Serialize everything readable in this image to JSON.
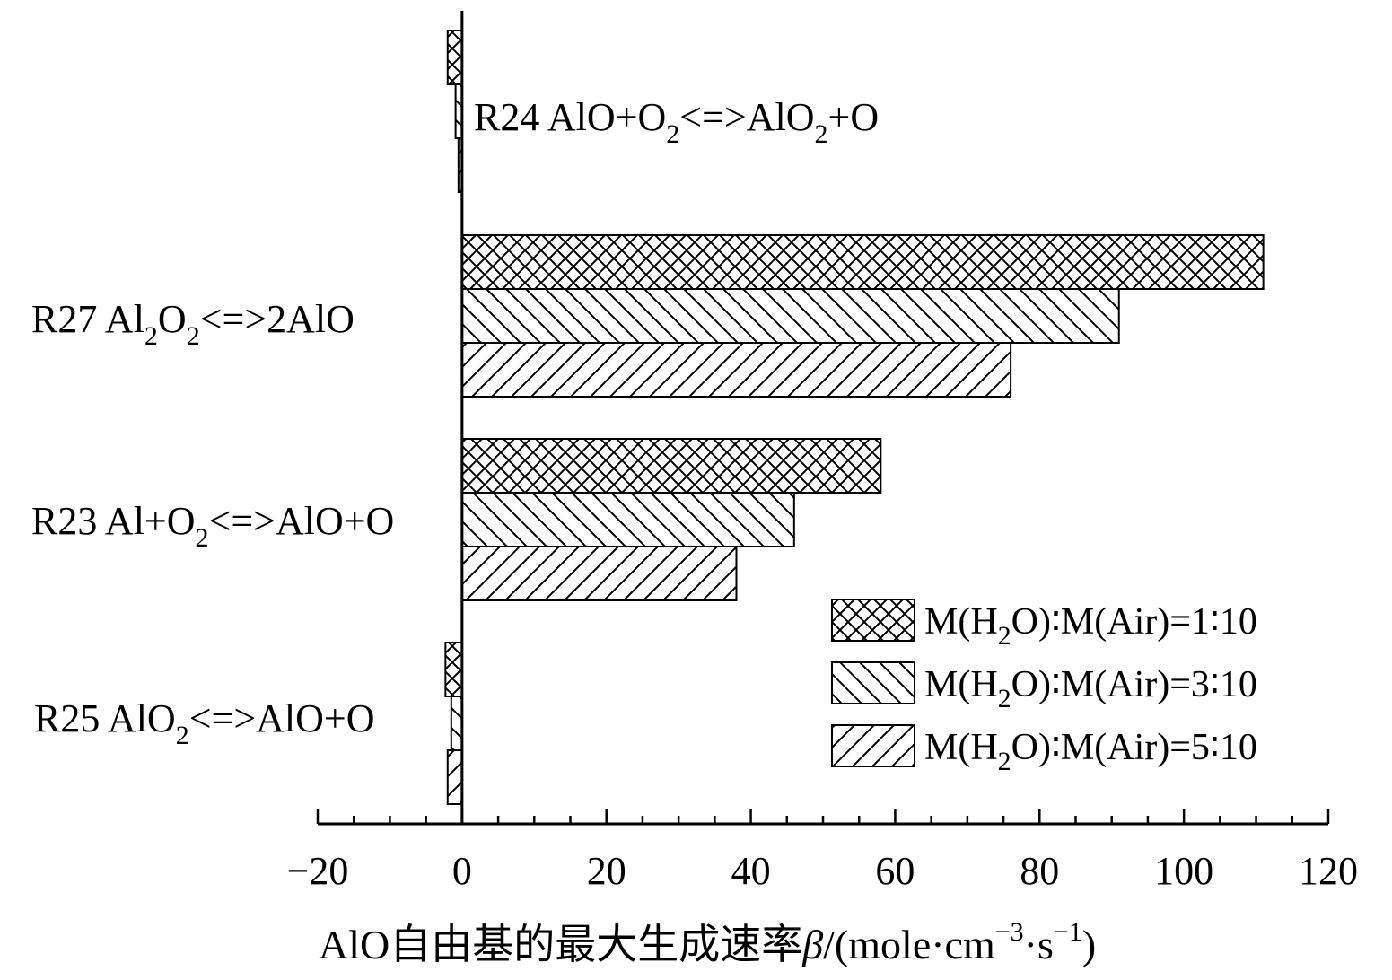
{
  "chart_data": {
    "type": "bar",
    "orientation": "horizontal",
    "categories": [
      {
        "name": "R24",
        "reaction": "AlO+O₂<=>AlO₂+O"
      },
      {
        "name": "R27",
        "reaction": "Al₂O₂<=>2AlO"
      },
      {
        "name": "R23",
        "reaction": "Al+O₂<=>AlO+O"
      },
      {
        "name": "R25",
        "reaction": "AlO₂<=>AlO+O"
      }
    ],
    "series": [
      {
        "name": "M(H₂O)∶M(Air)=1∶10",
        "pattern": "crosshatch",
        "values": [
          -2,
          111,
          58,
          -2.3
        ]
      },
      {
        "name": "M(H₂O)∶M(Air)=3∶10",
        "pattern": "backslash",
        "values": [
          -0.9,
          91,
          46,
          -1.5
        ]
      },
      {
        "name": "M(H₂O)∶M(Air)=5∶10",
        "pattern": "slash",
        "values": [
          -0.5,
          76,
          38,
          -2
        ]
      }
    ],
    "xlabel": "AlO自由基的最大生成速率β/(mole·cm⁻³·s⁻¹)",
    "xlim": [
      -20,
      120
    ],
    "xticks": [
      "−20",
      "0",
      "20",
      "40",
      "60",
      "80",
      "100",
      "120"
    ],
    "legend_position": "bottom-right",
    "grid": false
  }
}
